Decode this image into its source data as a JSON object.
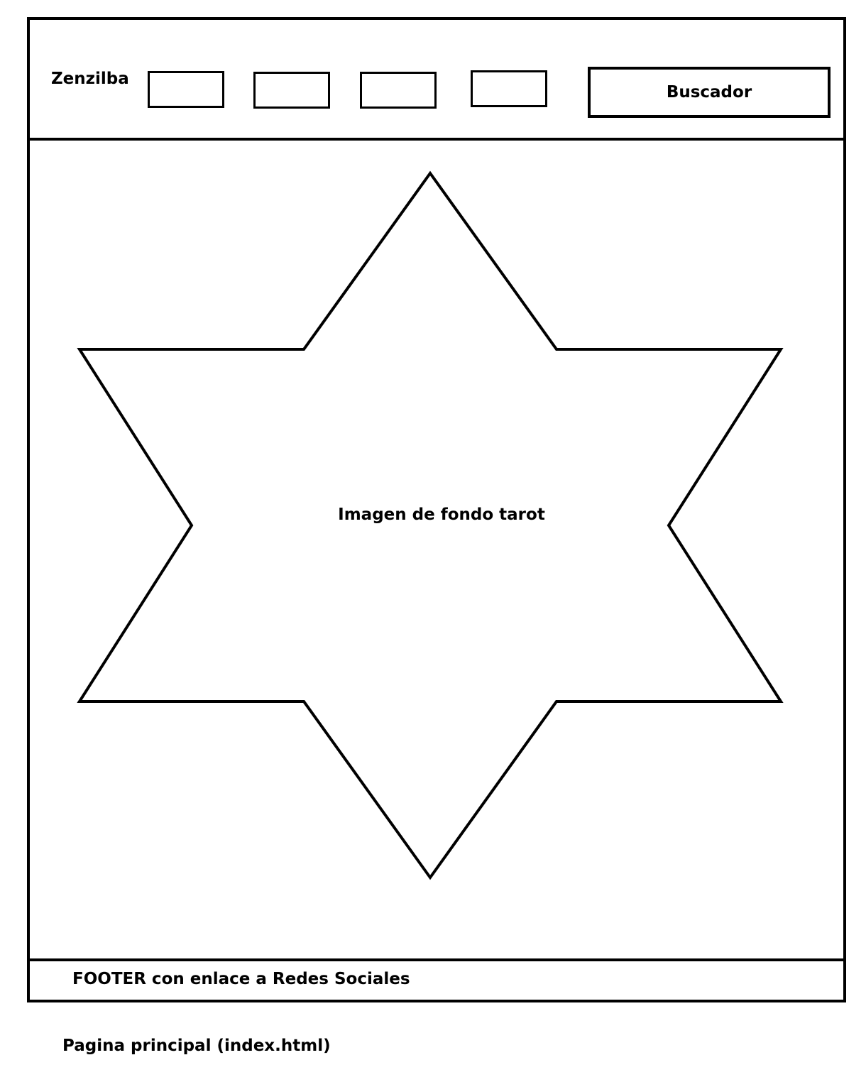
{
  "header": {
    "brand": "Zenzilba",
    "nav_items": [
      "",
      "",
      "",
      ""
    ],
    "search_label": "Buscador"
  },
  "main": {
    "hero_label": "Imagen de fondo tarot"
  },
  "footer": {
    "text": "FOOTER  con enlace a Redes Sociales"
  },
  "caption": "Pagina principal (index.html)"
}
